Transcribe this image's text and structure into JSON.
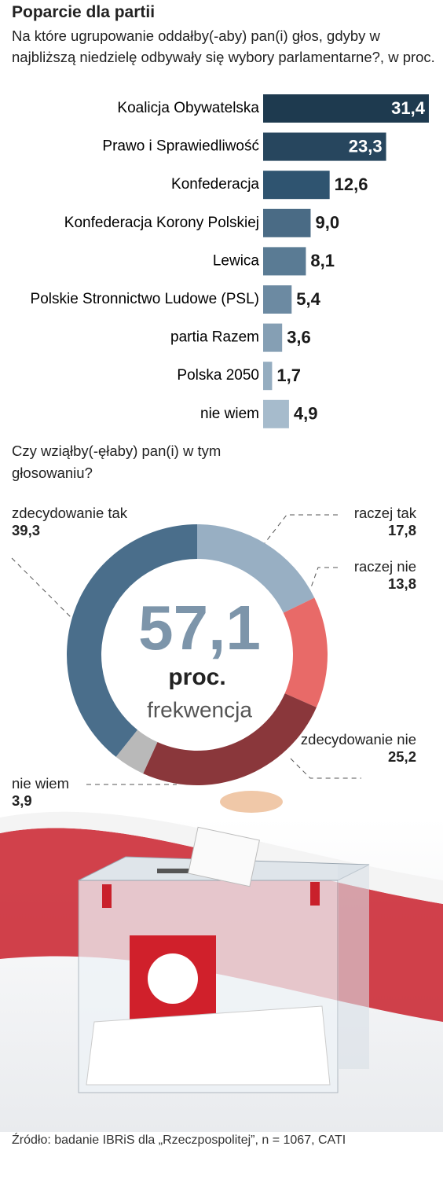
{
  "chart_data": [
    {
      "type": "bar",
      "orientation": "horizontal",
      "title": "Poparcie dla partii",
      "subtitle": "Na które ugrupowanie oddałby(-aby) pan(i) głos, gdyby w najbliższą niedzielę odbywały się wybory parlamentarne?, w proc.",
      "categories": [
        "Koalicja Obywatelska",
        "Prawo i Sprawiedliwość",
        "Konfederacja",
        "Konfederacja Korony Polskiej",
        "Lewica",
        "Polskie Stronnictwo Ludowe (PSL)",
        "partia Razem",
        "Polska 2050",
        "nie wiem"
      ],
      "values": [
        31.4,
        23.3,
        12.6,
        9.0,
        8.1,
        5.4,
        3.6,
        1.7,
        4.9
      ],
      "value_labels": [
        "31,4",
        "23,3",
        "12,6",
        "9,0",
        "8,1",
        "5,4",
        "3,6",
        "1,7",
        "4,9"
      ],
      "colors": [
        "#1e3a4f",
        "#27465e",
        "#2f5470",
        "#4a6b85",
        "#5a7b94",
        "#6c8aa2",
        "#859fb4",
        "#95adc0",
        "#a6bbcc"
      ],
      "xlim": [
        0,
        31.4
      ]
    },
    {
      "type": "pie",
      "donut": true,
      "title": "Czy wziąłby(-ęłaby) pan(i) w tym głosowaniu?",
      "categories": [
        "raczej tak",
        "raczej nie",
        "zdecydowanie nie",
        "nie wiem",
        "zdecydowanie tak"
      ],
      "values": [
        17.8,
        13.8,
        25.2,
        3.9,
        39.3
      ],
      "value_labels": [
        "17,8",
        "13,8",
        "25,2",
        "3,9",
        "39,3"
      ],
      "colors": [
        "#98afc3",
        "#e86a68",
        "#8a373b",
        "#b9b9b9",
        "#4a6e8b"
      ],
      "annotations": [
        "57,1",
        "proc.",
        "frekwencja"
      ]
    }
  ],
  "source": "Źródło: badanie IBRiS dla „Rzeczpospolitej”, n = 1067, CATI"
}
